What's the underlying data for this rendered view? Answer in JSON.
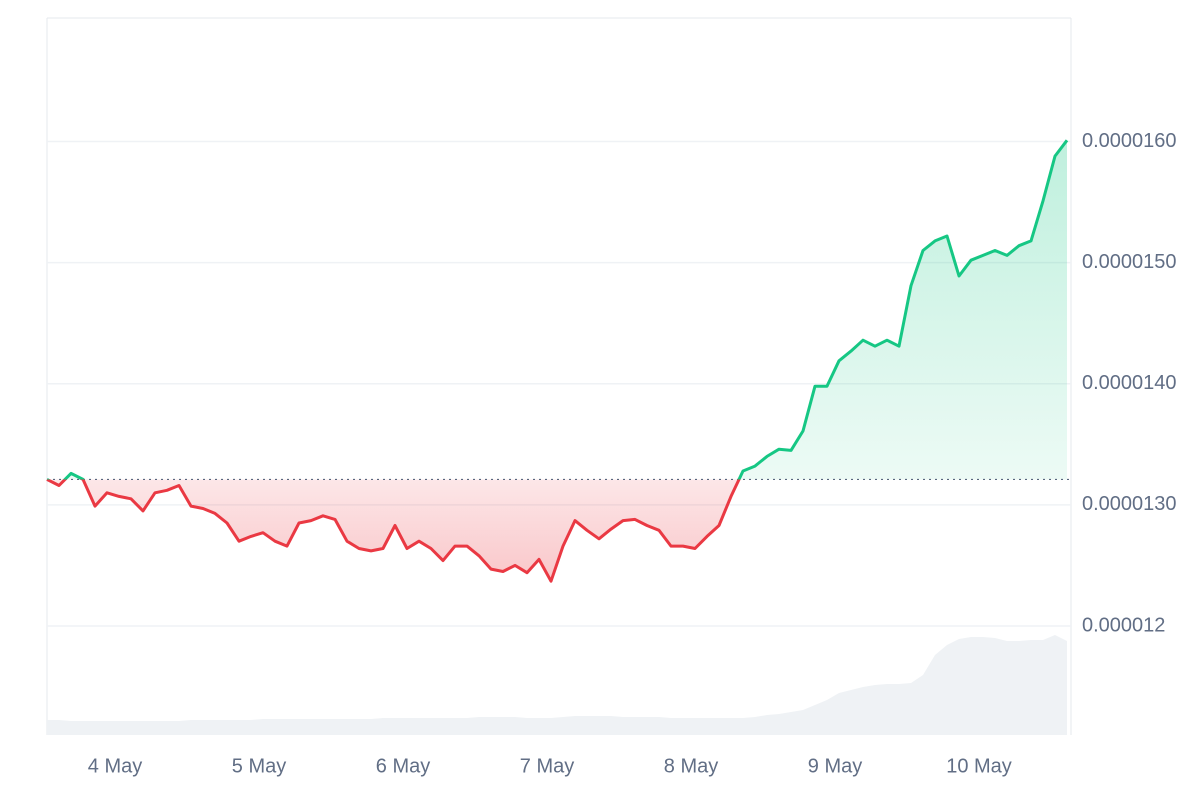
{
  "chart_data": {
    "type": "line",
    "up_color": "#16c784",
    "down_color": "#ea3943",
    "volume_color": "#eff2f5",
    "categories": [
      null,
      null,
      null,
      null,
      null,
      null,
      "4 May",
      null,
      null,
      null,
      null,
      null,
      null,
      null,
      null,
      null,
      null,
      null,
      "5 May",
      null,
      null,
      null,
      null,
      null,
      null,
      null,
      null,
      null,
      null,
      null,
      "6 May",
      null,
      null,
      null,
      null,
      null,
      null,
      null,
      null,
      null,
      null,
      null,
      "7 May",
      null,
      null,
      null,
      null,
      null,
      null,
      null,
      null,
      null,
      null,
      null,
      "8 May",
      null,
      null,
      null,
      null,
      null,
      null,
      null,
      null,
      null,
      null,
      null,
      "9 May",
      null,
      null,
      null,
      null,
      null,
      null,
      null,
      null,
      null,
      null,
      null,
      "10 May",
      null,
      null,
      null,
      null,
      null,
      null,
      null
    ],
    "values": [
      1.321e-05,
      1.316e-05,
      1.326e-05,
      1.321e-05,
      1.299e-05,
      1.31e-05,
      1.307e-05,
      1.305e-05,
      1.295e-05,
      1.31e-05,
      1.312e-05,
      1.316e-05,
      1.299e-05,
      1.297e-05,
      1.293e-05,
      1.285e-05,
      1.27e-05,
      1.274e-05,
      1.277e-05,
      1.27e-05,
      1.266e-05,
      1.285e-05,
      1.287e-05,
      1.291e-05,
      1.288e-05,
      1.27e-05,
      1.264e-05,
      1.262e-05,
      1.264e-05,
      1.283e-05,
      1.264e-05,
      1.27e-05,
      1.264e-05,
      1.254e-05,
      1.266e-05,
      1.266e-05,
      1.258e-05,
      1.247e-05,
      1.245e-05,
      1.25e-05,
      1.244e-05,
      1.255e-05,
      1.237e-05,
      1.266e-05,
      1.287e-05,
      1.279e-05,
      1.272e-05,
      1.28e-05,
      1.287e-05,
      1.288e-05,
      1.283e-05,
      1.279e-05,
      1.266e-05,
      1.266e-05,
      1.264e-05,
      1.274e-05,
      1.283e-05,
      1.307e-05,
      1.328e-05,
      1.332e-05,
      1.34e-05,
      1.346e-05,
      1.345e-05,
      1.361e-05,
      1.398e-05,
      1.398e-05,
      1.419e-05,
      1.427e-05,
      1.436e-05,
      1.431e-05,
      1.436e-05,
      1.431e-05,
      1.481e-05,
      1.51e-05,
      1.518e-05,
      1.522e-05,
      1.489e-05,
      1.502e-05,
      1.506e-05,
      1.51e-05,
      1.506e-05,
      1.514e-05,
      1.518e-05,
      1.551e-05,
      1.588e-05,
      1.601e-05
    ],
    "volume_values": [
      15,
      15,
      14,
      14,
      14,
      14,
      14,
      14,
      14,
      14,
      14,
      14,
      15,
      15,
      15,
      15,
      15,
      15,
      16,
      16,
      16,
      16,
      16,
      16,
      16,
      16,
      16,
      16,
      17,
      17,
      17,
      17,
      17,
      17,
      17,
      17,
      18,
      18,
      18,
      18,
      17,
      17,
      17,
      18,
      19,
      19,
      19,
      19,
      18,
      18,
      18,
      18,
      17,
      17,
      17,
      17,
      17,
      17,
      17,
      18,
      20,
      21,
      23,
      25,
      30,
      35,
      42,
      45,
      48,
      50,
      51,
      51,
      52,
      60,
      80,
      90,
      96,
      98,
      98,
      97,
      94,
      94,
      95,
      95,
      100,
      94
    ],
    "ylim": [
      1.11e-05,
      1.702e-05
    ],
    "yticks": [
      1.2e-05,
      {
        "value": 1.3e-05,
        "label": "0.0000130"
      },
      {
        "value": 1.4e-05,
        "label": "0.0000140"
      },
      {
        "value": 1.5e-05,
        "label": "0.0000150"
      },
      {
        "value": 1.6e-05,
        "label": "0.0000160"
      }
    ],
    "grid": true
  }
}
